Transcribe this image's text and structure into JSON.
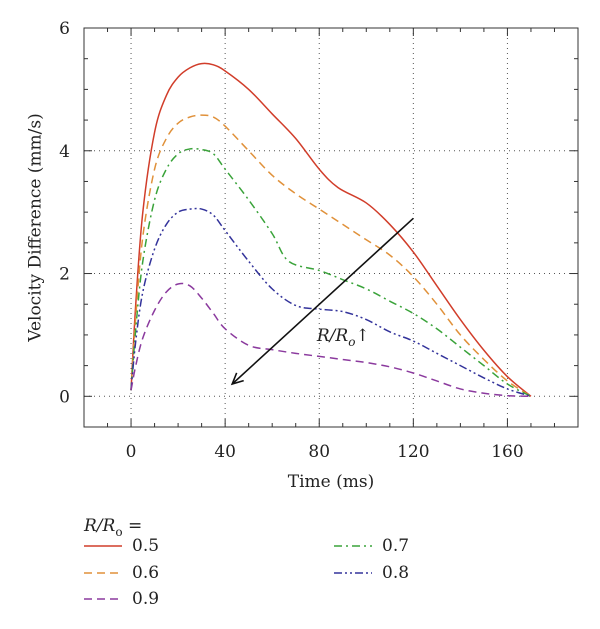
{
  "chart_data": {
    "type": "line",
    "xlabel": "Time (ms)",
    "ylabel": "Velocity Difference (mm/s)",
    "xlim": [
      -20,
      190
    ],
    "ylim": [
      -0.5,
      6
    ],
    "x_ticks": [
      0,
      40,
      80,
      120,
      160
    ],
    "y_ticks": [
      0,
      2,
      4,
      6
    ],
    "grid": true,
    "legend_placement": "bottom",
    "legend_title": "R/R",
    "legend_title_sub": "o",
    "legend_title_suffix": " =",
    "annotation": {
      "text": "R/R",
      "sub": "o",
      "arrow_glyph": "↑"
    },
    "series": [
      {
        "name": "0.5",
        "color": "#d13d2a",
        "dash": "solid",
        "x": [
          0,
          2,
          5,
          10,
          15,
          20,
          25,
          30,
          35,
          40,
          50,
          60,
          70,
          80,
          88,
          100,
          110,
          120,
          130,
          140,
          150,
          160,
          170
        ],
        "y": [
          0.1,
          1.5,
          3.0,
          4.3,
          4.9,
          5.2,
          5.35,
          5.42,
          5.4,
          5.3,
          5.0,
          4.6,
          4.2,
          3.7,
          3.4,
          3.15,
          2.8,
          2.35,
          1.8,
          1.25,
          0.75,
          0.32,
          0
        ]
      },
      {
        "name": "0.6",
        "color": "#e0913a",
        "dash": "dashed",
        "x": [
          0,
          2,
          5,
          10,
          15,
          20,
          25,
          30,
          35,
          40,
          50,
          60,
          70,
          80,
          90,
          100,
          110,
          120,
          130,
          140,
          150,
          160,
          170
        ],
        "y": [
          0.1,
          1.3,
          2.6,
          3.7,
          4.2,
          4.45,
          4.55,
          4.58,
          4.55,
          4.4,
          4.0,
          3.6,
          3.3,
          3.05,
          2.8,
          2.55,
          2.3,
          1.95,
          1.5,
          1.0,
          0.6,
          0.25,
          0
        ]
      },
      {
        "name": "0.7",
        "color": "#3aa33a",
        "dash": "dashdot",
        "x": [
          0,
          2,
          5,
          10,
          15,
          20,
          25,
          30,
          35,
          40,
          50,
          60,
          67,
          80,
          90,
          100,
          110,
          120,
          130,
          140,
          150,
          160,
          170
        ],
        "y": [
          0.1,
          1.1,
          2.2,
          3.2,
          3.7,
          3.95,
          4.03,
          4.02,
          3.95,
          3.7,
          3.2,
          2.65,
          2.2,
          2.05,
          1.9,
          1.75,
          1.55,
          1.35,
          1.1,
          0.8,
          0.5,
          0.2,
          0
        ]
      },
      {
        "name": "0.8",
        "color": "#33339b",
        "dash": "dashdotdot",
        "x": [
          0,
          2,
          5,
          10,
          15,
          20,
          25,
          30,
          35,
          40,
          50,
          60,
          70,
          80,
          90,
          100,
          110,
          120,
          130,
          140,
          150,
          160,
          170
        ],
        "y": [
          0.1,
          0.9,
          1.7,
          2.4,
          2.8,
          3.0,
          3.05,
          3.05,
          2.95,
          2.7,
          2.2,
          1.75,
          1.48,
          1.42,
          1.38,
          1.25,
          1.05,
          0.9,
          0.7,
          0.5,
          0.3,
          0.12,
          0
        ]
      },
      {
        "name": "0.9",
        "color": "#8b3a9e",
        "dash": "dashed",
        "x": [
          0,
          2,
          5,
          10,
          15,
          20,
          25,
          30,
          35,
          40,
          50,
          60,
          70,
          80,
          90,
          100,
          110,
          120,
          130,
          140,
          150,
          160,
          170
        ],
        "y": [
          0.1,
          0.5,
          0.95,
          1.4,
          1.7,
          1.83,
          1.8,
          1.6,
          1.35,
          1.1,
          0.83,
          0.76,
          0.7,
          0.65,
          0.6,
          0.55,
          0.48,
          0.38,
          0.25,
          0.12,
          0.05,
          0.01,
          0
        ]
      }
    ]
  }
}
